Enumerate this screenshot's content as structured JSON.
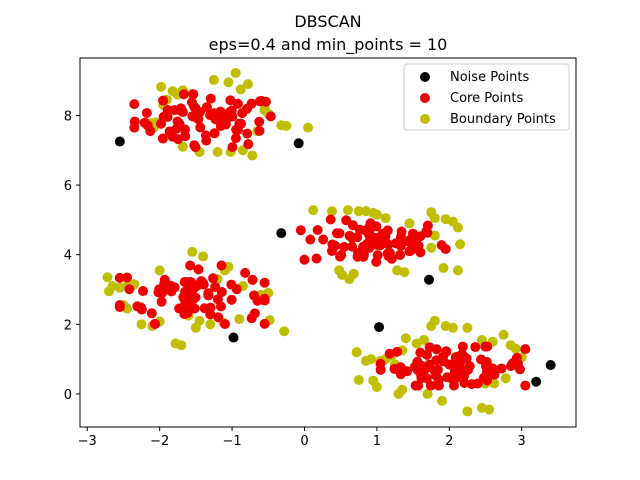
{
  "chart_data": {
    "type": "scatter",
    "title": "DBSCAN",
    "subtitle": "eps=0.4 and min_points = 10",
    "xlabel": "",
    "ylabel": "",
    "xlim": [
      -3.1,
      3.75
    ],
    "ylim": [
      -0.95,
      9.65
    ],
    "xticks": [
      -3,
      -2,
      -1,
      0,
      1,
      2,
      3
    ],
    "yticks": [
      0,
      2,
      4,
      6,
      8
    ],
    "grid": false,
    "legend_position": "top-right",
    "series": [
      {
        "name": "Noise Points",
        "color": "#000000",
        "points": [
          [
            -2.55,
            7.25
          ],
          [
            -0.08,
            7.2
          ],
          [
            -0.32,
            4.62
          ],
          [
            1.72,
            3.28
          ],
          [
            -0.98,
            1.62
          ],
          [
            1.03,
            1.92
          ],
          [
            3.4,
            0.83
          ],
          [
            3.2,
            0.35
          ]
        ]
      },
      {
        "name": "Core Points",
        "color": "#ee0000",
        "clusters": [
          {
            "center": [
              -1.35,
              7.85
            ],
            "spread": [
              0.5,
              0.38
            ],
            "count": 75
          },
          {
            "center": [
              0.95,
              4.35
            ],
            "spread": [
              0.5,
              0.33
            ],
            "count": 78
          },
          {
            "center": [
              -1.55,
              2.85
            ],
            "spread": [
              0.5,
              0.42
            ],
            "count": 82
          },
          {
            "center": [
              2.05,
              0.8
            ],
            "spread": [
              0.5,
              0.28
            ],
            "count": 82
          }
        ]
      },
      {
        "name": "Boundary Points",
        "color": "#bfbf00",
        "points": [
          [
            -2.12,
            7.78
          ],
          [
            -2.08,
            7.65
          ],
          [
            -1.95,
            8.3
          ],
          [
            -1.9,
            8.45
          ],
          [
            -1.82,
            8.7
          ],
          [
            -1.75,
            8.6
          ],
          [
            -1.68,
            8.72
          ],
          [
            -1.55,
            8.62
          ],
          [
            -1.98,
            8.82
          ],
          [
            -1.05,
            8.95
          ],
          [
            -0.95,
            9.22
          ],
          [
            -0.88,
            8.75
          ],
          [
            -0.78,
            8.9
          ],
          [
            -0.55,
            8.2
          ],
          [
            -0.5,
            8.05
          ],
          [
            -0.65,
            7.55
          ],
          [
            -0.32,
            7.72
          ],
          [
            -0.25,
            7.7
          ],
          [
            0.05,
            7.65
          ],
          [
            -0.72,
            6.85
          ],
          [
            -1.45,
            6.95
          ],
          [
            -1.2,
            6.95
          ],
          [
            -1.02,
            6.95
          ],
          [
            -1.68,
            7.1
          ],
          [
            -2.05,
            7.8
          ],
          [
            -1.25,
            9.02
          ],
          [
            -0.55,
            8.15
          ],
          [
            -0.85,
            7.0
          ],
          [
            0.12,
            5.28
          ],
          [
            0.38,
            5.25
          ],
          [
            0.6,
            5.28
          ],
          [
            0.75,
            5.25
          ],
          [
            0.95,
            5.2
          ],
          [
            1.12,
            5.05
          ],
          [
            1.45,
            4.9
          ],
          [
            1.75,
            5.22
          ],
          [
            1.8,
            5.05
          ],
          [
            1.95,
            5.02
          ],
          [
            2.05,
            4.95
          ],
          [
            2.12,
            4.78
          ],
          [
            2.15,
            4.3
          ],
          [
            1.8,
            4.55
          ],
          [
            1.75,
            4.2
          ],
          [
            2.12,
            3.55
          ],
          [
            1.92,
            3.62
          ],
          [
            1.28,
            3.55
          ],
          [
            1.38,
            3.5
          ],
          [
            0.62,
            3.3
          ],
          [
            0.52,
            3.42
          ],
          [
            0.48,
            3.55
          ],
          [
            0.68,
            3.45
          ],
          [
            0.85,
            5.25
          ],
          [
            1.0,
            5.15
          ],
          [
            -1.55,
            4.08
          ],
          [
            -1.4,
            3.95
          ],
          [
            -1.05,
            3.65
          ],
          [
            -1.1,
            3.55
          ],
          [
            -0.85,
            3.1
          ],
          [
            -0.6,
            2.85
          ],
          [
            -0.5,
            2.9
          ],
          [
            -0.9,
            2.15
          ],
          [
            -0.48,
            2.12
          ],
          [
            -0.28,
            1.8
          ],
          [
            -1.12,
            2.05
          ],
          [
            -1.3,
            2.0
          ],
          [
            -1.45,
            2.1
          ],
          [
            -1.5,
            1.9
          ],
          [
            -1.6,
            2.25
          ],
          [
            -1.78,
            1.45
          ],
          [
            -1.7,
            1.4
          ],
          [
            -2.0,
            2.08
          ],
          [
            -2.25,
            2.0
          ],
          [
            -2.45,
            2.45
          ],
          [
            -2.5,
            2.55
          ],
          [
            -2.55,
            3.05
          ],
          [
            -2.45,
            3.1
          ],
          [
            -2.35,
            3.15
          ],
          [
            -2.65,
            3.1
          ],
          [
            -2.72,
            3.35
          ],
          [
            -2.7,
            2.95
          ],
          [
            -2.1,
            1.95
          ],
          [
            -2.0,
            3.55
          ],
          [
            -1.2,
            3.3
          ],
          [
            0.72,
            1.2
          ],
          [
            0.92,
            1.0
          ],
          [
            1.05,
            0.95
          ],
          [
            1.12,
            1.0
          ],
          [
            1.2,
            1.1
          ],
          [
            1.35,
            1.25
          ],
          [
            1.4,
            1.6
          ],
          [
            1.55,
            1.45
          ],
          [
            1.65,
            1.55
          ],
          [
            1.75,
            1.95
          ],
          [
            1.8,
            2.1
          ],
          [
            1.95,
            1.95
          ],
          [
            2.05,
            1.9
          ],
          [
            2.25,
            1.9
          ],
          [
            2.45,
            1.55
          ],
          [
            2.6,
            1.5
          ],
          [
            2.75,
            1.7
          ],
          [
            2.85,
            1.4
          ],
          [
            2.92,
            1.3
          ],
          [
            3.0,
            1.05
          ],
          [
            2.78,
            0.45
          ],
          [
            2.62,
            0.3
          ],
          [
            2.5,
            0.3
          ],
          [
            2.45,
            -0.4
          ],
          [
            2.55,
            -0.45
          ],
          [
            2.25,
            -0.5
          ],
          [
            1.9,
            -0.2
          ],
          [
            1.7,
            0.0
          ],
          [
            1.35,
            0.12
          ],
          [
            1.3,
            0.0
          ],
          [
            1.0,
            0.2
          ],
          [
            0.95,
            0.38
          ],
          [
            0.75,
            0.4
          ],
          [
            1.25,
            0.85
          ],
          [
            0.85,
            0.95
          ]
        ]
      }
    ]
  }
}
